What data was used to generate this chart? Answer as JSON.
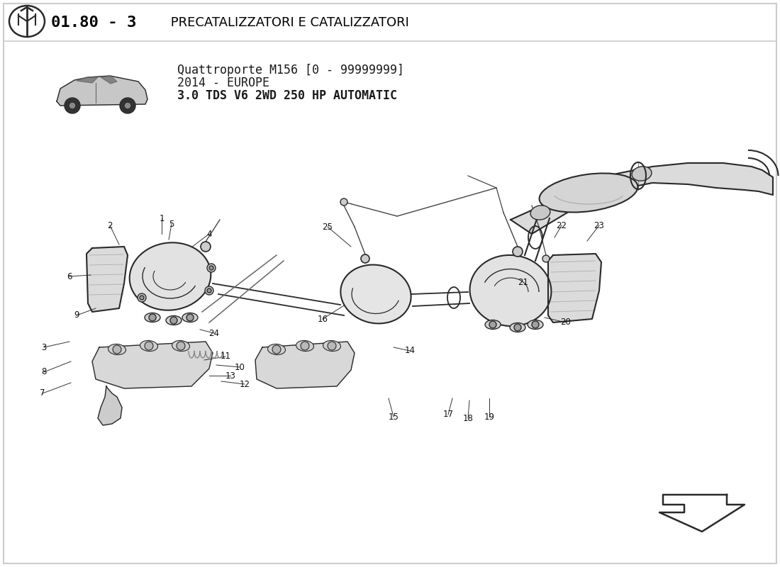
{
  "title_part1": "01.80 - 3",
  "title_part2": " PRECATALIZZATORI E CATALIZZATORI",
  "subtitle_line1": "Quattroporte M156 [0 - 99999999]",
  "subtitle_line2": "2014 - EUROPE",
  "subtitle_line3": "3.0 TDS V6 2WD 250 HP AUTOMATIC",
  "bg_color": "#ffffff",
  "text_color": "#1a1a1a",
  "diagram_color": "#2a2a2a",
  "border_color": "#cccccc",
  "title_bold_color": "#000000"
}
